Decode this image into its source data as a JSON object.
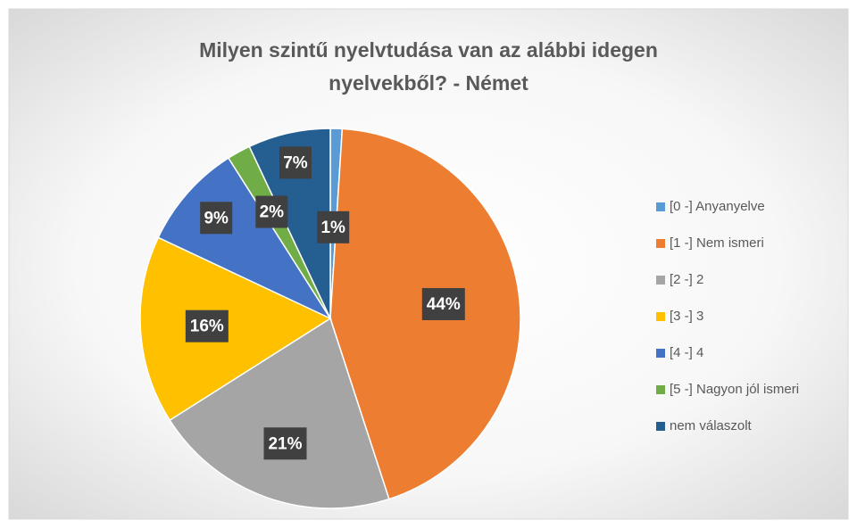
{
  "chart_data": {
    "type": "pie",
    "title": [
      "Milyen szintű nyelvtudása van az alábbi idegen",
      "nyelvekből? - Német"
    ],
    "categories": [
      "[0 -] Anyanyelve",
      "[1 -] Nem ismeri",
      "[2 -] 2",
      "[3 -] 3",
      "[4 -] 4",
      "[5 -] Nagyon jól ismeri",
      "nem válaszolt"
    ],
    "values": [
      1,
      44,
      21,
      16,
      9,
      2,
      7
    ],
    "value_labels": [
      "1%",
      "44%",
      "21%",
      "16%",
      "9%",
      "2%",
      "7%"
    ],
    "colors": [
      "#5b9bd5",
      "#ed7d31",
      "#a5a5a5",
      "#ffc000",
      "#4472c4",
      "#70ad47",
      "#255e91"
    ],
    "legend": "right"
  }
}
